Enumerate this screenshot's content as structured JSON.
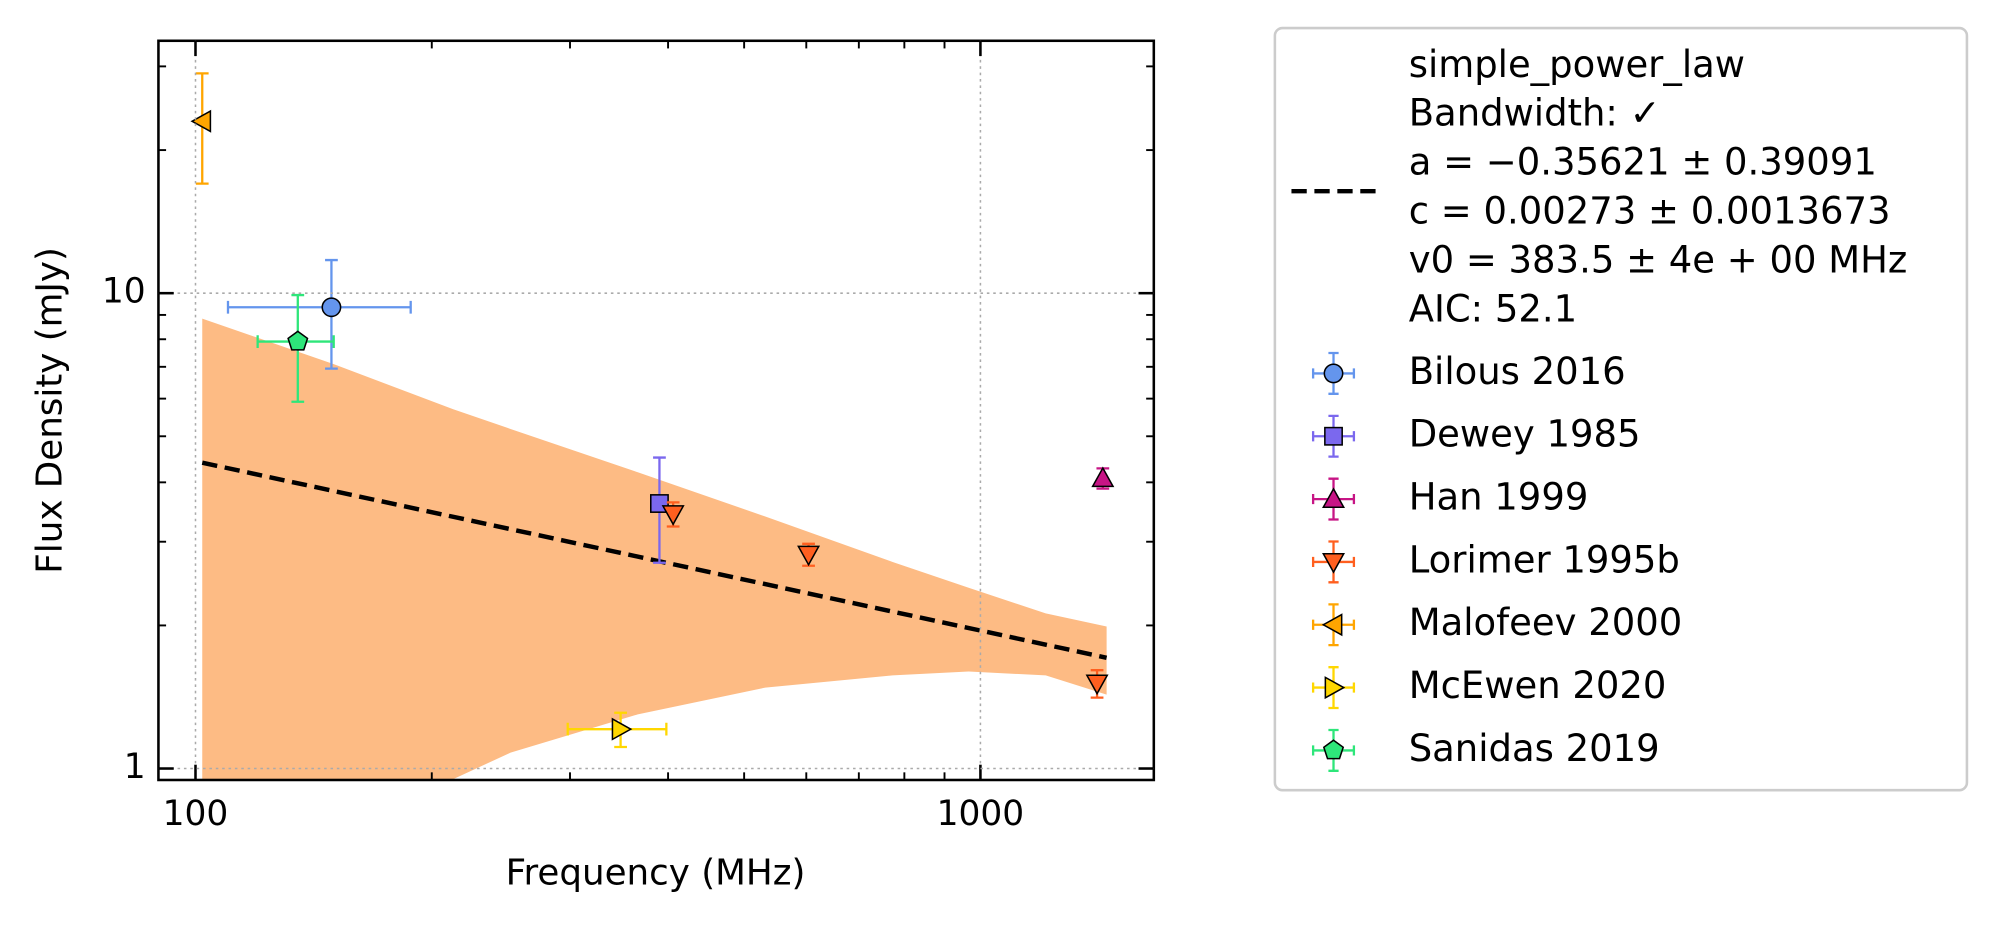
{
  "chart_data": {
    "type": "scatter",
    "xlabel": "Frequency (MHz)",
    "ylabel": "Flux Density (mJy)",
    "log_x": true,
    "log_y": true,
    "grid": true,
    "legend": "outside right",
    "xlim": [
      89.7,
      1663
    ],
    "ylim": [
      0.946,
      33.96
    ],
    "xticks": [
      100,
      1000
    ],
    "yticks": [
      1,
      10
    ],
    "xminorticks": [
      200,
      300,
      400,
      500,
      600,
      700,
      800,
      900
    ],
    "yminorticks": [
      2,
      3,
      4,
      5,
      6,
      7,
      8,
      9,
      20,
      30
    ],
    "fit": {
      "label_lines": [
        "simple_power_law",
        "Bandwidth: ✓",
        "a = −0.35621 ± 0.39091",
        "c = 0.00273 ± 0.0013673",
        "v0 = 383.5 ± 4e + 00 MHz",
        "AIC: 52.1"
      ],
      "color": "#000000",
      "x": [
        102,
        1448
      ],
      "values": [
        4.4,
        1.71
      ]
    },
    "band": {
      "color": "#fdbb84",
      "x": [
        102,
        150,
        213,
        252,
        366,
        532,
        773,
        966,
        1211,
        1448
      ],
      "upper": [
        8.84,
        7.09,
        5.7,
        5.18,
        4.2,
        3.39,
        2.72,
        2.4,
        2.12,
        1.99
      ],
      "lower": [
        0.5,
        0.8,
        0.95,
        1.08,
        1.3,
        1.48,
        1.57,
        1.6,
        1.57,
        1.43
      ]
    },
    "series": [
      {
        "name": "Bilous 2016",
        "color": "#6495ed",
        "marker": "circle",
        "x": [
          149
        ],
        "values": [
          9.34
        ],
        "x_err": [
          39
        ],
        "y_err": [
          2.4
        ]
      },
      {
        "name": "Dewey 1985",
        "color": "#7b68ee",
        "marker": "square",
        "x": [
          390
        ],
        "values": [
          3.61
        ],
        "x_err": [
          null
        ],
        "y_err": [
          0.9
        ]
      },
      {
        "name": "Han 1999",
        "color": "#c71585",
        "marker": "triangle-up",
        "x": [
          1432
        ],
        "values": [
          4.08
        ],
        "x_err": [
          null
        ],
        "y_err": [
          0.2
        ]
      },
      {
        "name": "Lorimer 1995b",
        "color": "#ff5f1f",
        "marker": "triangle-down",
        "x": [
          406,
          604,
          1408
        ],
        "values": [
          3.43,
          2.82,
          1.51
        ],
        "x_err": [
          null,
          null,
          null
        ],
        "y_err": [
          0.2,
          0.15,
          0.1
        ]
      },
      {
        "name": "Malofeev 2000",
        "color": "#ffa500",
        "marker": "triangle-left",
        "x": [
          102
        ],
        "values": [
          23.0
        ],
        "x_err": [
          null
        ],
        "y_err": [
          6
        ]
      },
      {
        "name": "McEwen 2020",
        "color": "#ffd700",
        "marker": "triangle-right",
        "x": [
          348
        ],
        "values": [
          1.21
        ],
        "x_err": [
          50
        ],
        "y_err": [
          0.1
        ]
      },
      {
        "name": "Sanidas 2019",
        "color": "#2ee67a",
        "marker": "pentagon",
        "x": [
          135
        ],
        "values": [
          7.91
        ],
        "x_err": [
          15
        ],
        "y_err": [
          2
        ]
      }
    ]
  }
}
